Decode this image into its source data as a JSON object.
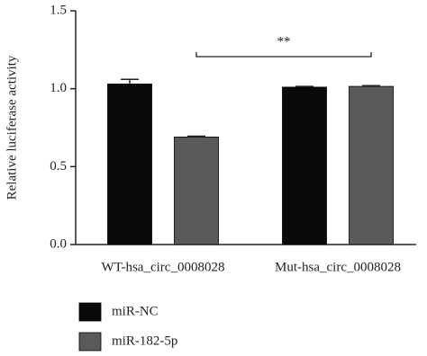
{
  "chart_data": {
    "type": "bar",
    "ylabel": "Relative luciferase activity",
    "categories": [
      "WT-hsa_circ_0008028",
      "Mut-hsa_circ_0008028"
    ],
    "series": [
      {
        "name": "miR-NC",
        "color": "#0a0a0a",
        "values": [
          1.03,
          1.01
        ],
        "errors": [
          0.03,
          0.005
        ]
      },
      {
        "name": "miR-182-5p",
        "color": "#5a5a5a",
        "values": [
          0.69,
          1.015
        ],
        "errors": [
          0.005,
          0.005
        ]
      }
    ],
    "ylim": [
      0,
      1.5
    ],
    "yticks": [
      {
        "value": 0,
        "label": "0.0"
      },
      {
        "value": 0.5,
        "label": "0.5"
      },
      {
        "value": 1,
        "label": "1.0"
      },
      {
        "value": 1.5,
        "label": "1.5"
      }
    ],
    "annotation": "**"
  }
}
